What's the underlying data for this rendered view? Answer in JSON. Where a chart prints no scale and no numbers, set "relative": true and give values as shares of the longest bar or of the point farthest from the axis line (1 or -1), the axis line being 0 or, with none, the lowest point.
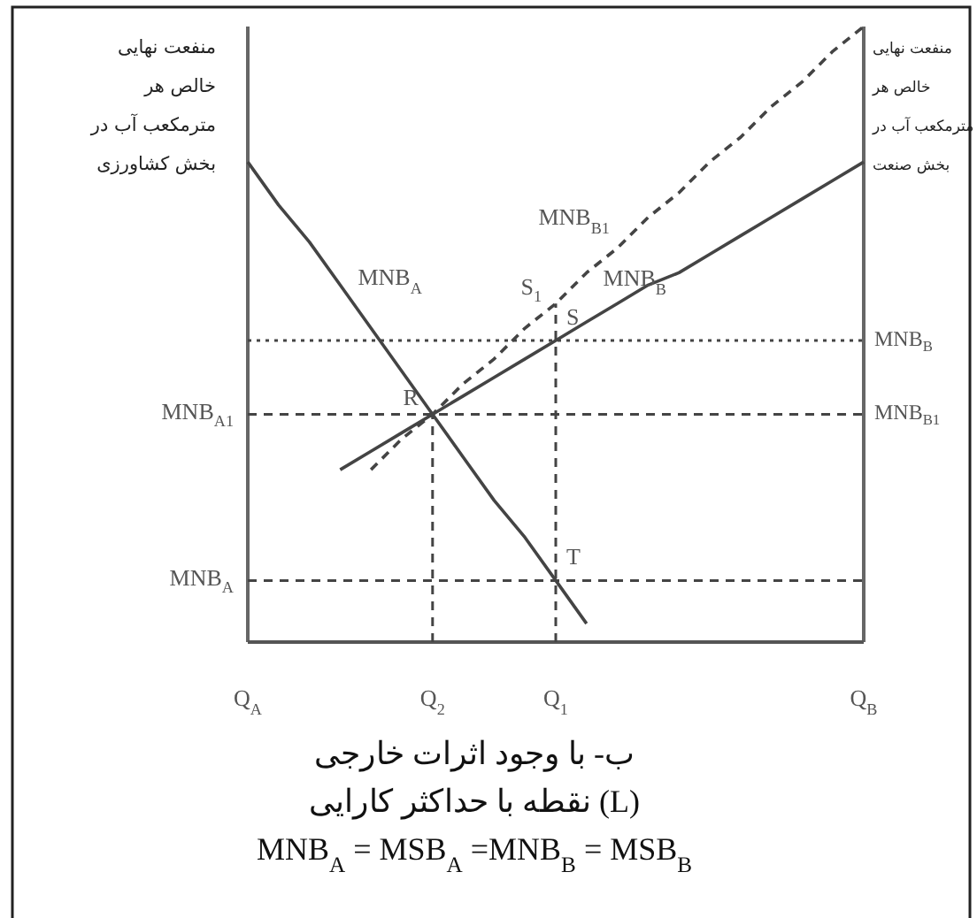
{
  "chart_data": {
    "type": "line",
    "relative": true,
    "ylabel": "منفعت نهایی\nخالص هر\nمترمکعب آب در\nبخش کشاورزی",
    "y2label": "منفعت نهایی\nخالص هر\nمترمکعب آب در\nبخش صنعت",
    "categories": [
      "Q$_{A}$",
      null,
      null,
      null,
      null,
      null,
      "Q$_{2}$",
      null,
      null,
      null,
      "Q$_{1}$",
      null,
      null,
      null,
      null,
      null,
      null,
      null,
      null,
      null,
      "Q$_{B}$"
    ],
    "series": [
      {
        "name": "MNB$_{A}$",
        "color": "#444444",
        "values": [
          0.78,
          0.71,
          0.65,
          0.58,
          0.51,
          0.44,
          0.37,
          0.3,
          0.23,
          0.17,
          0.1,
          0.03,
          null,
          null,
          null,
          null,
          null,
          null,
          null,
          null,
          null
        ]
      },
      {
        "name": "MNB$_{B}$",
        "color": "#444444",
        "values": [
          null,
          null,
          null,
          0.28,
          0.31,
          0.34,
          0.37,
          0.4,
          0.43,
          0.46,
          0.49,
          0.52,
          0.55,
          0.58,
          0.6,
          0.63,
          0.66,
          0.69,
          0.72,
          0.75,
          0.78
        ]
      },
      {
        "name": "MNB$_{B1}$",
        "color": "#444444",
        "line_style": "dashed",
        "values": [
          null,
          null,
          null,
          null,
          0.28,
          0.33,
          0.37,
          0.42,
          0.46,
          0.51,
          0.55,
          0.6,
          0.64,
          0.69,
          0.73,
          0.78,
          0.82,
          0.87,
          0.91,
          0.96,
          1
        ]
      }
    ],
    "ref_lines": [
      {
        "axis": "y",
        "value": 0.37,
        "label": "MNB$_{A1}$",
        "line_style": "dashed"
      },
      {
        "axis": "y",
        "value": 0.1,
        "label": "MNB$_{A}$",
        "line_style": "dashed"
      },
      {
        "axis": "y",
        "value": 0.49,
        "line_style": "dotted"
      },
      {
        "axis": "x",
        "value": "Q$_{2}$",
        "line_style": "dashed"
      },
      {
        "axis": "x",
        "value": "Q$_{1}$",
        "line_style": "dashed"
      }
    ],
    "annotations": [
      {
        "text": "R",
        "x": "Q$_{2}$",
        "y": 0.37
      },
      {
        "text": "S",
        "x": "Q$_{1}$",
        "y": 0.49
      },
      {
        "text": "S$_{1}$",
        "x": "Q$_{1}$",
        "y": 0.55
      },
      {
        "text": "T",
        "x": "Q$_{1}$",
        "y": 0.1
      },
      {
        "text": "MNB$_{B}$",
        "x": "Q$_{B}$",
        "y": 0.49
      },
      {
        "text": "MNB$_{B1}$",
        "x": "Q$_{B}$",
        "y": 0.37
      },
      "ب- با وجود اثرات خارجی",
      "نقطه با حداکثر کارایی (L)",
      "MNB$_{A}$ = MSB$_{A}$ =MNB$_{B}$ = MSB$_{B}$"
    ]
  }
}
